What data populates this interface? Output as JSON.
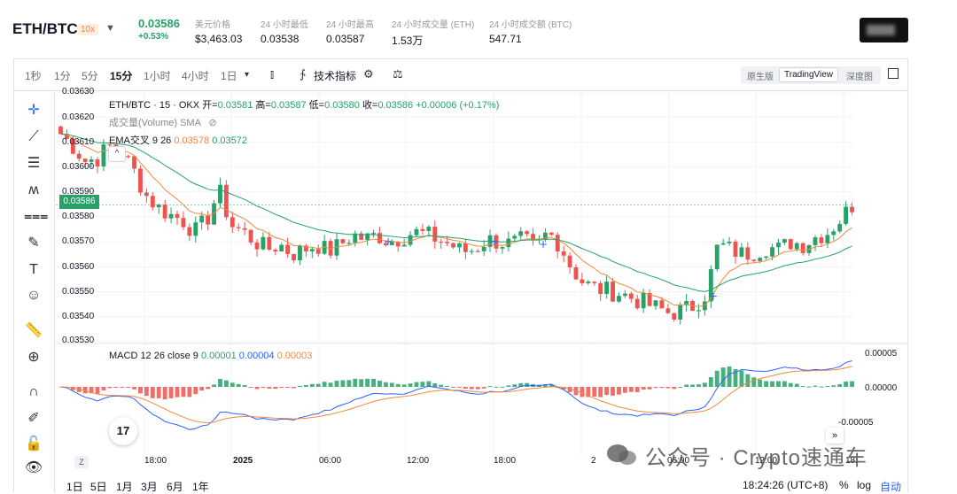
{
  "header": {
    "pair": "ETH/BTC",
    "leverage": "10x",
    "price": "0.03586",
    "change": "+0.53%",
    "stats": [
      {
        "label": "美元价格",
        "value": "$3,463.03"
      },
      {
        "label": "24 小时最低",
        "value": "0.03538"
      },
      {
        "label": "24 小时最高",
        "value": "0.03587"
      },
      {
        "label": "24 小时成交量 (ETH)",
        "value": "1.53万"
      },
      {
        "label": "24 小时成交额 (BTC)",
        "value": "547.71"
      }
    ]
  },
  "toolbar": {
    "timeframes": [
      "1秒",
      "1分",
      "5分",
      "15分",
      "1小时",
      "4小时",
      "1日"
    ],
    "active_timeframe": "15分",
    "indicators_label": "技术指标",
    "view_modes": [
      "原生版",
      "TradingView",
      "深度图"
    ],
    "active_view": "TradingView"
  },
  "sidebar_tools": [
    "crosshair-icon",
    "trend-line-icon",
    "fib-icon",
    "pattern-icon",
    "measure-lines-icon",
    "brush-icon",
    "text-icon",
    "emoji-icon",
    "ruler-icon",
    "zoom-in-icon",
    "magnet-icon",
    "lock-drawing-icon",
    "unlock-icon",
    "eye-icon"
  ],
  "legend": {
    "title": "ETH/BTC · 15 · OKX",
    "open_label": "开=",
    "open": "0.03581",
    "high_label": "高=",
    "high": "0.03587",
    "low_label": "低=",
    "low": "0.03580",
    "close_label": "收=",
    "close": "0.03586",
    "delta": "+0.00006 (+0.17%)",
    "volume": "成交量(Volume) SMA",
    "ema_name": "EMA交叉 9 26",
    "ema_fast": "0.03578",
    "ema_slow": "0.03572",
    "macd_name": "MACD 12 26 close 9",
    "macd_hist": "0.00001",
    "macd_line": "0.00004",
    "macd_signal": "0.00003"
  },
  "price_axis": [
    "0.03630",
    "0.03620",
    "0.03610",
    "0.03600",
    "0.03590",
    "0.03580",
    "0.03570",
    "0.03560",
    "0.03550",
    "0.03540",
    "0.03530"
  ],
  "last_price_badge": "0.03586",
  "macd_axis": [
    "0.00005",
    "0.00000",
    "-0.00005"
  ],
  "time_axis": [
    "18:00",
    "2025",
    "06:00",
    "12:00",
    "18:00",
    "2",
    "06:00",
    "12:00",
    "18:"
  ],
  "timezone_button": "Z",
  "tv_logo": "17",
  "ranges": [
    "1日",
    "5日",
    "1月",
    "3月",
    "6月",
    "1年"
  ],
  "clock": "18:24:26 (UTC+8)",
  "bottom_right": {
    "percent": "%",
    "log": "log",
    "auto": "自动"
  },
  "watermark": "公众号 · Crypto速通车",
  "colors": {
    "up": "#26a269",
    "down": "#ef5350",
    "ema_fast": "#f0883e",
    "ema_slow": "#26a269",
    "macd": "#2962ff",
    "signal": "#f0883e"
  },
  "chart_data": {
    "type": "candlestick",
    "title": "ETH/BTC · 15 · OKX",
    "ylim": [
      0.0353,
      0.03632
    ],
    "x_labels": [
      "18:00",
      "2025",
      "06:00",
      "12:00",
      "18:00",
      "2",
      "06:00",
      "12:00",
      "18:"
    ],
    "close_path": [
      0.03615,
      0.0361,
      0.03604,
      0.03605,
      0.0361,
      0.03608,
      0.036,
      0.0359,
      0.03585,
      0.03582,
      0.0358,
      0.03575,
      0.0358,
      0.03592,
      0.03578,
      0.03575,
      0.03571,
      0.03568,
      0.0357,
      0.03566,
      0.03568,
      0.0357,
      0.03567,
      0.0357,
      0.03574,
      0.03572,
      0.03574,
      0.03571,
      0.03573,
      0.03575,
      0.03574,
      0.03572,
      0.0357,
      0.03567,
      0.03568,
      0.03572,
      0.03571,
      0.0357,
      0.03572,
      0.03568,
      0.03575,
      0.0357,
      0.0356,
      0.03554,
      0.03552,
      0.03551,
      0.0355,
      0.03548,
      0.03546,
      0.03544,
      0.03542,
      0.03543,
      0.03545,
      0.0355,
      0.0357,
      0.03568,
      0.03566,
      0.03567,
      0.03569,
      0.03568,
      0.03571,
      0.0357,
      0.03573,
      0.03575,
      0.0358,
      0.03586
    ],
    "series": [
      {
        "name": "EMA交叉 9",
        "last": 0.03578
      },
      {
        "name": "EMA交叉 26",
        "last": 0.03572
      },
      {
        "name": "MACD",
        "last": 4e-05
      },
      {
        "name": "Signal",
        "last": 3e-05
      }
    ],
    "macd_ylim": [
      -7e-05,
      7e-05
    ]
  }
}
